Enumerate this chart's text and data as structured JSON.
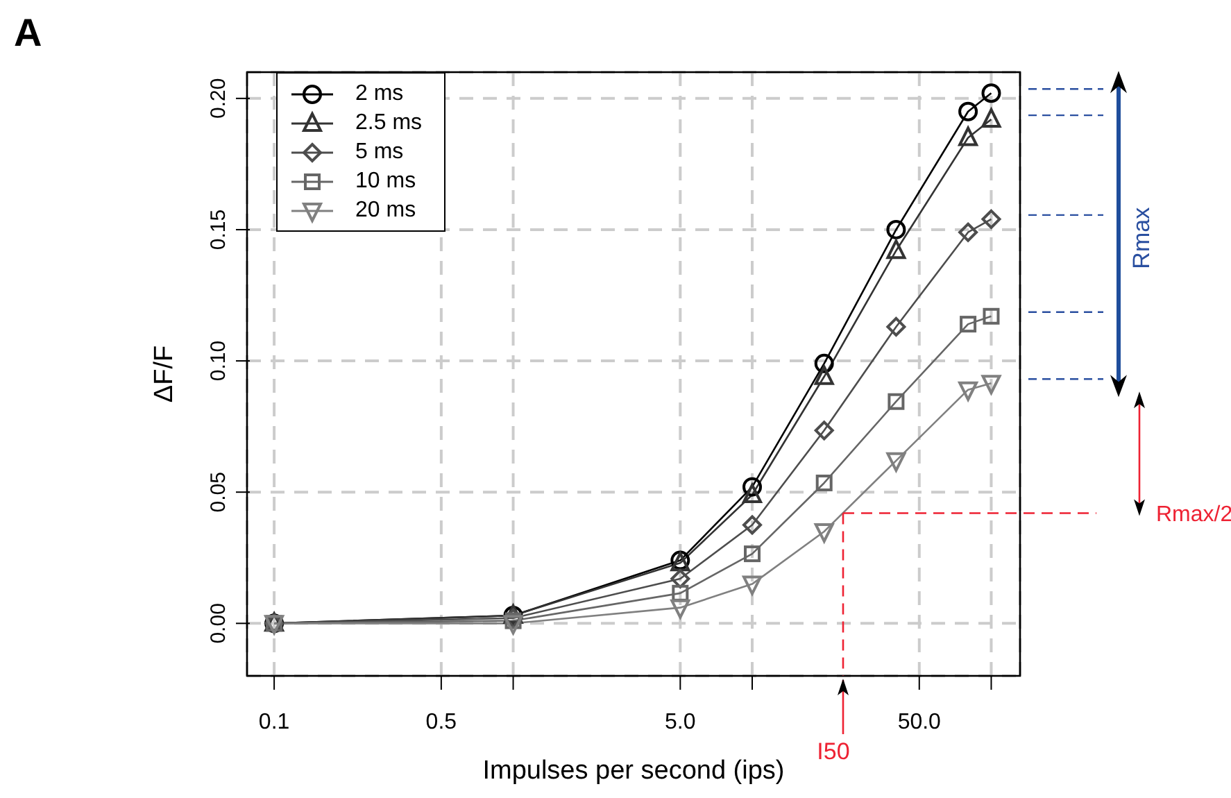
{
  "chart_data": {
    "type": "line",
    "xlabel": "Impulses per second (ips)",
    "ylabel": "ΔF/F",
    "x": [
      0.1,
      1,
      5,
      10,
      20,
      40,
      80,
      100
    ],
    "series": [
      {
        "name": "2 ms",
        "color": "#000000",
        "marker": "circle",
        "values": [
          0,
          0.003,
          0.024,
          0.052,
          0.099,
          0.15,
          0.195,
          0.202
        ]
      },
      {
        "name": "2.5 ms",
        "color": "#333333",
        "marker": "triangle",
        "values": [
          0,
          0.003,
          0.023,
          0.049,
          0.094,
          0.142,
          0.185,
          0.192
        ]
      },
      {
        "name": "5 ms",
        "color": "#4d4d4d",
        "marker": "diamond",
        "values": [
          0,
          0.002,
          0.017,
          0.0375,
          0.0735,
          0.113,
          0.149,
          0.154
        ]
      },
      {
        "name": "10 ms",
        "color": "#666666",
        "marker": "square",
        "values": [
          0,
          0.001,
          0.0115,
          0.0265,
          0.0535,
          0.0845,
          0.114,
          0.117
        ]
      },
      {
        "name": "20 ms",
        "color": "#808080",
        "marker": "triangle-down",
        "values": [
          0,
          0,
          0.006,
          0.015,
          0.035,
          0.062,
          0.089,
          0.0915
        ]
      }
    ],
    "log": "x",
    "xlim": [
      0.077,
      132
    ],
    "xticks": [
      0.1,
      0.5,
      {
        "value": 1,
        "label": null
      },
      {
        "value": 5,
        "label": "5.0"
      },
      {
        "value": 10,
        "label": null
      },
      {
        "value": 50,
        "label": "50.0"
      },
      {
        "value": 100,
        "label": null
      }
    ],
    "ylim": [
      -0.02,
      0.21
    ],
    "yticks": [
      {
        "value": 0,
        "label": "0.00"
      },
      0.05,
      {
        "value": 0.1,
        "label": "0.10"
      },
      0.15,
      {
        "value": 0.2,
        "label": "0.20"
      }
    ],
    "grid": true,
    "legend": "top left",
    "line_style": "solid",
    "ref_lines": [
      {
        "axis": "x",
        "value": 24,
        "label": "I50",
        "color": "#ee2233",
        "line_style": "dashed"
      },
      {
        "axis": "y",
        "value": 0.042,
        "label": "Rmax/2",
        "color": "#ee2233",
        "line_style": "dashed"
      }
    ],
    "annotations": [
      "A",
      "Rmax"
    ]
  }
}
